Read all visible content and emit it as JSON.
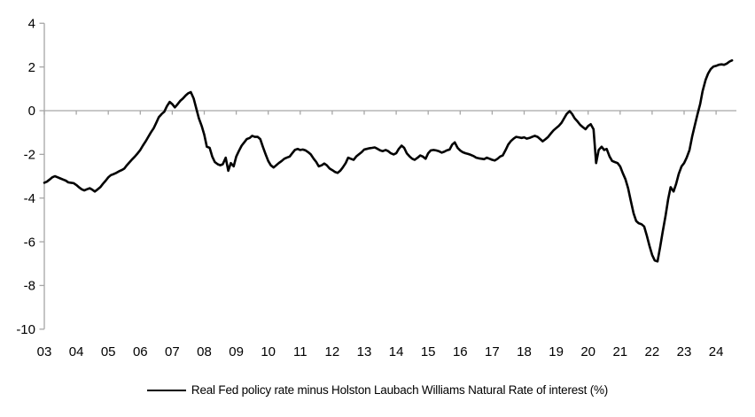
{
  "legend": {
    "label": "Real Fed policy rate minus Holston Laubach Williams Natural Rate of interest (%)"
  },
  "colors": {
    "background": "#ffffff",
    "axis": "#a6a6a6",
    "series": "#000000",
    "text": "#000000"
  },
  "chart_data": {
    "type": "line",
    "title": "",
    "xlabel": "",
    "ylabel": "",
    "grid": false,
    "zero_baseline": true,
    "legend_position": "bottom-center",
    "ylim": [
      -10,
      4
    ],
    "y_ticks": [
      4,
      2,
      0,
      -2,
      -4,
      -6,
      -8,
      -10
    ],
    "x_year_start": 2003,
    "x_tick_labels": [
      "03",
      "04",
      "05",
      "06",
      "07",
      "08",
      "09",
      "10",
      "11",
      "12",
      "13",
      "14",
      "15",
      "16",
      "17",
      "18",
      "19",
      "20",
      "21",
      "22",
      "23",
      "24"
    ],
    "series": [
      {
        "name": "Real Fed policy rate minus Holston Laubach Williams Natural Rate of interest (%)",
        "points": [
          [
            2003.0,
            -3.3
          ],
          [
            2003.08,
            -3.25
          ],
          [
            2003.17,
            -3.15
          ],
          [
            2003.25,
            -3.05
          ],
          [
            2003.33,
            -3.0
          ],
          [
            2003.42,
            -3.05
          ],
          [
            2003.5,
            -3.1
          ],
          [
            2003.58,
            -3.15
          ],
          [
            2003.67,
            -3.2
          ],
          [
            2003.75,
            -3.28
          ],
          [
            2003.83,
            -3.3
          ],
          [
            2003.92,
            -3.32
          ],
          [
            2004.0,
            -3.4
          ],
          [
            2004.08,
            -3.5
          ],
          [
            2004.17,
            -3.6
          ],
          [
            2004.25,
            -3.65
          ],
          [
            2004.33,
            -3.6
          ],
          [
            2004.42,
            -3.55
          ],
          [
            2004.5,
            -3.62
          ],
          [
            2004.58,
            -3.7
          ],
          [
            2004.67,
            -3.6
          ],
          [
            2004.75,
            -3.5
          ],
          [
            2004.83,
            -3.35
          ],
          [
            2004.92,
            -3.2
          ],
          [
            2005.0,
            -3.05
          ],
          [
            2005.08,
            -2.95
          ],
          [
            2005.17,
            -2.9
          ],
          [
            2005.25,
            -2.85
          ],
          [
            2005.33,
            -2.78
          ],
          [
            2005.42,
            -2.72
          ],
          [
            2005.5,
            -2.65
          ],
          [
            2005.58,
            -2.5
          ],
          [
            2005.67,
            -2.35
          ],
          [
            2005.75,
            -2.22
          ],
          [
            2005.83,
            -2.1
          ],
          [
            2005.92,
            -1.95
          ],
          [
            2006.0,
            -1.8
          ],
          [
            2006.08,
            -1.6
          ],
          [
            2006.17,
            -1.4
          ],
          [
            2006.25,
            -1.2
          ],
          [
            2006.33,
            -1.0
          ],
          [
            2006.42,
            -0.8
          ],
          [
            2006.5,
            -0.55
          ],
          [
            2006.58,
            -0.3
          ],
          [
            2006.67,
            -0.15
          ],
          [
            2006.75,
            -0.05
          ],
          [
            2006.83,
            0.2
          ],
          [
            2006.92,
            0.4
          ],
          [
            2007.0,
            0.3
          ],
          [
            2007.08,
            0.15
          ],
          [
            2007.17,
            0.3
          ],
          [
            2007.25,
            0.45
          ],
          [
            2007.33,
            0.55
          ],
          [
            2007.42,
            0.7
          ],
          [
            2007.5,
            0.8
          ],
          [
            2007.58,
            0.85
          ],
          [
            2007.67,
            0.55
          ],
          [
            2007.75,
            0.1
          ],
          [
            2007.83,
            -0.35
          ],
          [
            2007.92,
            -0.7
          ],
          [
            2008.0,
            -1.1
          ],
          [
            2008.08,
            -1.65
          ],
          [
            2008.17,
            -1.7
          ],
          [
            2008.25,
            -2.1
          ],
          [
            2008.33,
            -2.35
          ],
          [
            2008.42,
            -2.45
          ],
          [
            2008.5,
            -2.5
          ],
          [
            2008.58,
            -2.45
          ],
          [
            2008.67,
            -2.15
          ],
          [
            2008.75,
            -2.75
          ],
          [
            2008.83,
            -2.4
          ],
          [
            2008.92,
            -2.55
          ],
          [
            2009.0,
            -2.1
          ],
          [
            2009.08,
            -1.85
          ],
          [
            2009.17,
            -1.6
          ],
          [
            2009.25,
            -1.45
          ],
          [
            2009.33,
            -1.3
          ],
          [
            2009.42,
            -1.25
          ],
          [
            2009.5,
            -1.15
          ],
          [
            2009.58,
            -1.2
          ],
          [
            2009.67,
            -1.2
          ],
          [
            2009.75,
            -1.3
          ],
          [
            2009.83,
            -1.65
          ],
          [
            2009.92,
            -2.0
          ],
          [
            2010.0,
            -2.3
          ],
          [
            2010.08,
            -2.5
          ],
          [
            2010.17,
            -2.6
          ],
          [
            2010.25,
            -2.5
          ],
          [
            2010.33,
            -2.4
          ],
          [
            2010.42,
            -2.3
          ],
          [
            2010.5,
            -2.2
          ],
          [
            2010.58,
            -2.15
          ],
          [
            2010.67,
            -2.1
          ],
          [
            2010.75,
            -1.95
          ],
          [
            2010.83,
            -1.8
          ],
          [
            2010.92,
            -1.75
          ],
          [
            2011.0,
            -1.8
          ],
          [
            2011.08,
            -1.78
          ],
          [
            2011.17,
            -1.82
          ],
          [
            2011.25,
            -1.9
          ],
          [
            2011.33,
            -2.0
          ],
          [
            2011.42,
            -2.2
          ],
          [
            2011.5,
            -2.35
          ],
          [
            2011.58,
            -2.55
          ],
          [
            2011.67,
            -2.5
          ],
          [
            2011.75,
            -2.42
          ],
          [
            2011.83,
            -2.5
          ],
          [
            2011.92,
            -2.65
          ],
          [
            2012.0,
            -2.72
          ],
          [
            2012.08,
            -2.8
          ],
          [
            2012.17,
            -2.85
          ],
          [
            2012.25,
            -2.75
          ],
          [
            2012.33,
            -2.6
          ],
          [
            2012.42,
            -2.4
          ],
          [
            2012.5,
            -2.15
          ],
          [
            2012.58,
            -2.2
          ],
          [
            2012.67,
            -2.25
          ],
          [
            2012.75,
            -2.1
          ],
          [
            2012.83,
            -2.0
          ],
          [
            2012.92,
            -1.9
          ],
          [
            2013.0,
            -1.78
          ],
          [
            2013.08,
            -1.75
          ],
          [
            2013.17,
            -1.72
          ],
          [
            2013.25,
            -1.7
          ],
          [
            2013.33,
            -1.68
          ],
          [
            2013.42,
            -1.75
          ],
          [
            2013.5,
            -1.82
          ],
          [
            2013.58,
            -1.85
          ],
          [
            2013.67,
            -1.8
          ],
          [
            2013.75,
            -1.85
          ],
          [
            2013.83,
            -1.95
          ],
          [
            2013.92,
            -2.0
          ],
          [
            2014.0,
            -1.95
          ],
          [
            2014.08,
            -1.75
          ],
          [
            2014.17,
            -1.6
          ],
          [
            2014.25,
            -1.7
          ],
          [
            2014.33,
            -1.95
          ],
          [
            2014.42,
            -2.1
          ],
          [
            2014.5,
            -2.2
          ],
          [
            2014.58,
            -2.25
          ],
          [
            2014.67,
            -2.15
          ],
          [
            2014.75,
            -2.05
          ],
          [
            2014.83,
            -2.1
          ],
          [
            2014.92,
            -2.2
          ],
          [
            2015.0,
            -1.95
          ],
          [
            2015.08,
            -1.82
          ],
          [
            2015.17,
            -1.8
          ],
          [
            2015.25,
            -1.82
          ],
          [
            2015.33,
            -1.85
          ],
          [
            2015.42,
            -1.92
          ],
          [
            2015.5,
            -1.88
          ],
          [
            2015.58,
            -1.82
          ],
          [
            2015.67,
            -1.78
          ],
          [
            2015.75,
            -1.55
          ],
          [
            2015.83,
            -1.45
          ],
          [
            2015.92,
            -1.7
          ],
          [
            2016.0,
            -1.82
          ],
          [
            2016.08,
            -1.9
          ],
          [
            2016.17,
            -1.95
          ],
          [
            2016.25,
            -1.98
          ],
          [
            2016.33,
            -2.02
          ],
          [
            2016.42,
            -2.08
          ],
          [
            2016.5,
            -2.15
          ],
          [
            2016.58,
            -2.18
          ],
          [
            2016.67,
            -2.2
          ],
          [
            2016.75,
            -2.22
          ],
          [
            2016.83,
            -2.15
          ],
          [
            2016.92,
            -2.2
          ],
          [
            2017.0,
            -2.25
          ],
          [
            2017.08,
            -2.28
          ],
          [
            2017.17,
            -2.2
          ],
          [
            2017.25,
            -2.1
          ],
          [
            2017.33,
            -2.05
          ],
          [
            2017.42,
            -1.8
          ],
          [
            2017.5,
            -1.55
          ],
          [
            2017.58,
            -1.4
          ],
          [
            2017.67,
            -1.28
          ],
          [
            2017.75,
            -1.2
          ],
          [
            2017.83,
            -1.22
          ],
          [
            2017.92,
            -1.25
          ],
          [
            2018.0,
            -1.22
          ],
          [
            2018.08,
            -1.28
          ],
          [
            2018.17,
            -1.25
          ],
          [
            2018.25,
            -1.2
          ],
          [
            2018.33,
            -1.15
          ],
          [
            2018.42,
            -1.2
          ],
          [
            2018.5,
            -1.3
          ],
          [
            2018.58,
            -1.4
          ],
          [
            2018.67,
            -1.3
          ],
          [
            2018.75,
            -1.2
          ],
          [
            2018.83,
            -1.05
          ],
          [
            2018.92,
            -0.9
          ],
          [
            2019.0,
            -0.8
          ],
          [
            2019.08,
            -0.7
          ],
          [
            2019.17,
            -0.55
          ],
          [
            2019.25,
            -0.35
          ],
          [
            2019.33,
            -0.15
          ],
          [
            2019.42,
            -0.02
          ],
          [
            2019.5,
            -0.15
          ],
          [
            2019.58,
            -0.35
          ],
          [
            2019.67,
            -0.5
          ],
          [
            2019.75,
            -0.65
          ],
          [
            2019.83,
            -0.75
          ],
          [
            2019.92,
            -0.85
          ],
          [
            2020.0,
            -0.7
          ],
          [
            2020.08,
            -0.62
          ],
          [
            2020.17,
            -0.85
          ],
          [
            2020.25,
            -2.4
          ],
          [
            2020.33,
            -1.8
          ],
          [
            2020.42,
            -1.65
          ],
          [
            2020.5,
            -1.8
          ],
          [
            2020.58,
            -1.75
          ],
          [
            2020.67,
            -2.1
          ],
          [
            2020.75,
            -2.3
          ],
          [
            2020.83,
            -2.35
          ],
          [
            2020.92,
            -2.4
          ],
          [
            2021.0,
            -2.55
          ],
          [
            2021.08,
            -2.85
          ],
          [
            2021.17,
            -3.15
          ],
          [
            2021.25,
            -3.55
          ],
          [
            2021.33,
            -4.1
          ],
          [
            2021.42,
            -4.7
          ],
          [
            2021.5,
            -5.05
          ],
          [
            2021.58,
            -5.15
          ],
          [
            2021.67,
            -5.2
          ],
          [
            2021.75,
            -5.3
          ],
          [
            2021.83,
            -5.7
          ],
          [
            2021.92,
            -6.2
          ],
          [
            2022.0,
            -6.6
          ],
          [
            2022.08,
            -6.85
          ],
          [
            2022.17,
            -6.9
          ],
          [
            2022.25,
            -6.25
          ],
          [
            2022.33,
            -5.55
          ],
          [
            2022.42,
            -4.8
          ],
          [
            2022.5,
            -4.05
          ],
          [
            2022.58,
            -3.5
          ],
          [
            2022.67,
            -3.7
          ],
          [
            2022.75,
            -3.35
          ],
          [
            2022.83,
            -2.9
          ],
          [
            2022.92,
            -2.55
          ],
          [
            2023.0,
            -2.4
          ],
          [
            2023.08,
            -2.15
          ],
          [
            2023.17,
            -1.8
          ],
          [
            2023.25,
            -1.2
          ],
          [
            2023.33,
            -0.7
          ],
          [
            2023.42,
            -0.15
          ],
          [
            2023.5,
            0.3
          ],
          [
            2023.58,
            0.9
          ],
          [
            2023.67,
            1.4
          ],
          [
            2023.75,
            1.7
          ],
          [
            2023.83,
            1.9
          ],
          [
            2023.92,
            2.02
          ],
          [
            2024.0,
            2.05
          ],
          [
            2024.08,
            2.1
          ],
          [
            2024.17,
            2.12
          ],
          [
            2024.25,
            2.1
          ],
          [
            2024.33,
            2.15
          ],
          [
            2024.42,
            2.25
          ],
          [
            2024.5,
            2.3
          ]
        ]
      }
    ]
  }
}
